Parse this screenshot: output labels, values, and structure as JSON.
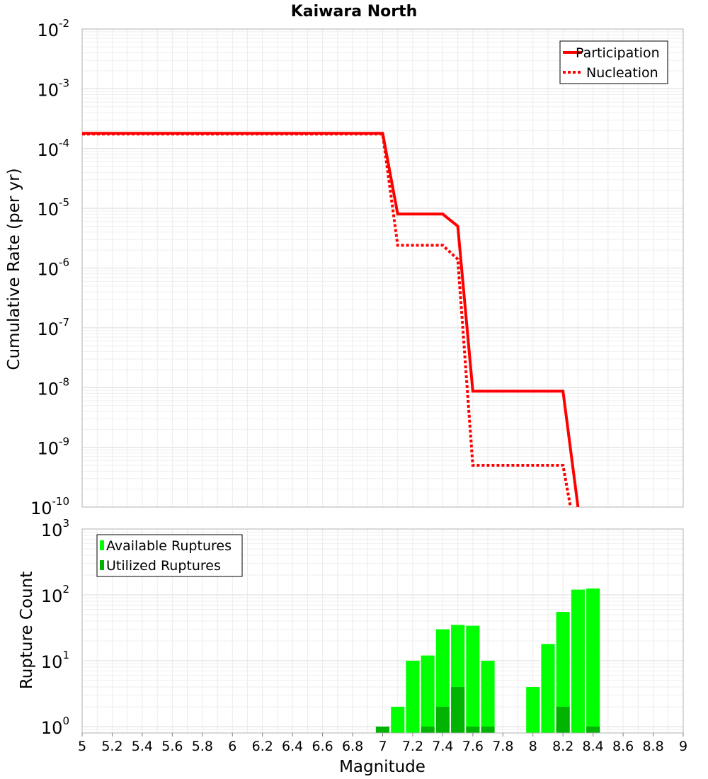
{
  "chart_data": [
    {
      "type": "line",
      "title": "Kaiwara North",
      "xlabel": "",
      "ylabel": "Cumulative Rate (per yr)",
      "yscale": "log",
      "xlim": [
        5,
        9
      ],
      "ylim": [
        1e-10,
        0.01
      ],
      "grid": true,
      "legend_position": "top-right",
      "y_tick_labels": [
        "10^-10",
        "10^-9",
        "10^-8",
        "10^-7",
        "10^-6",
        "10^-5",
        "10^-4",
        "10^-3",
        "10^-2"
      ],
      "series": [
        {
          "name": "Participation",
          "style": "solid",
          "color": "#ff0000",
          "x": [
            5.0,
            7.0,
            7.1,
            7.4,
            7.5,
            7.6,
            8.2,
            8.3
          ],
          "y": [
            0.00018,
            0.00018,
            8e-06,
            8e-06,
            5e-06,
            8.7e-09,
            8.7e-09,
            1e-10
          ]
        },
        {
          "name": "Nucleation",
          "style": "dotted",
          "color": "#ff0000",
          "x": [
            5.0,
            7.0,
            7.1,
            7.4,
            7.5,
            7.6,
            8.2,
            8.25
          ],
          "y": [
            0.000175,
            0.000175,
            2.4e-06,
            2.4e-06,
            1.4e-06,
            5e-10,
            5e-10,
            1e-10
          ]
        }
      ]
    },
    {
      "type": "bar",
      "title": "",
      "xlabel": "Magnitude",
      "ylabel": "Rupture Count",
      "yscale": "log",
      "xlim": [
        5,
        9
      ],
      "ylim": [
        0.8,
        1000
      ],
      "grid": true,
      "legend_position": "top-left",
      "bar_width": 0.09,
      "x_tick_labels": [
        "5",
        "5.2",
        "5.4",
        "5.6",
        "5.8",
        "6",
        "6.2",
        "6.4",
        "6.6",
        "6.8",
        "7",
        "7.2",
        "7.4",
        "7.6",
        "7.8",
        "8",
        "8.2",
        "8.4",
        "8.6",
        "8.8",
        "9"
      ],
      "y_tick_labels": [
        "10^0",
        "10^1",
        "10^2",
        "10^3"
      ],
      "series": [
        {
          "name": "Available Ruptures",
          "color": "#00ff00",
          "x": [
            7.0,
            7.1,
            7.2,
            7.3,
            7.4,
            7.5,
            7.6,
            7.7,
            8.0,
            8.1,
            8.2,
            8.3,
            8.4
          ],
          "values": [
            1,
            2,
            10,
            12,
            30,
            35,
            34,
            10,
            4,
            18,
            55,
            120,
            125
          ]
        },
        {
          "name": "Utilized Ruptures",
          "color": "#00b300",
          "x": [
            7.0,
            7.3,
            7.4,
            7.5,
            7.6,
            7.7,
            8.2,
            8.4
          ],
          "values": [
            1,
            1,
            2,
            4,
            1,
            1,
            2,
            1
          ]
        }
      ]
    }
  ]
}
